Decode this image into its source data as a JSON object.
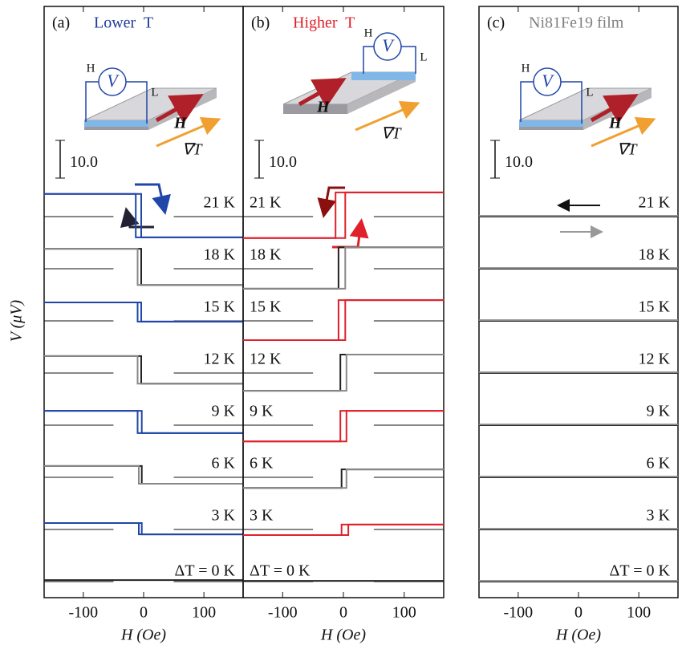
{
  "ylabel": "V (μV)",
  "chart_data": [
    {
      "type": "line",
      "label": "(a)",
      "title": "Lower  T",
      "title_color": "#1f3a9a",
      "xlabel": "H (Oe)",
      "xlim": [
        -165,
        165
      ],
      "xticks": [
        -100,
        0,
        100
      ],
      "reference_lines": true,
      "scale_bar": {
        "value": 10,
        "label": "10.0"
      },
      "inset": {
        "probe_high": "H",
        "voltmeter": "V",
        "probe_low": "L",
        "field": "H",
        "gradient": "∇T"
      },
      "traces": [
        {
          "label": "21 K",
          "series": [
            {
              "color": "#2046a8",
              "x": [
                -165,
                -4,
                -4,
                165
              ],
              "values": [
                6.0,
                6.0,
                -5.5,
                -5.5
              ]
            },
            {
              "color": "#2046a8",
              "x": [
                -165,
                -13,
                -13,
                165
              ],
              "values": [
                6.0,
                6.0,
                -5.5,
                -5.5
              ]
            }
          ]
        },
        {
          "label": "18 K",
          "series": [
            {
              "color": "#222222",
              "x": [
                -165,
                -4,
                -4,
                165
              ],
              "values": [
                5.3,
                5.3,
                -4.3,
                -4.3
              ]
            },
            {
              "color": "#888888",
              "x": [
                -165,
                -10,
                -10,
                165
              ],
              "values": [
                5.3,
                5.3,
                -4.3,
                -4.3
              ]
            }
          ]
        },
        {
          "label": "15 K",
          "series": [
            {
              "color": "#2046a8",
              "x": [
                -165,
                -4,
                -4,
                165
              ],
              "values": [
                4.9,
                4.9,
                -0.2,
                -0.2
              ]
            },
            {
              "color": "#2046a8",
              "x": [
                -165,
                -10,
                -10,
                165
              ],
              "values": [
                4.9,
                4.9,
                -0.2,
                -0.2
              ]
            }
          ]
        },
        {
          "label": "12 K",
          "series": [
            {
              "color": "#222222",
              "x": [
                -165,
                -4,
                -4,
                165
              ],
              "values": [
                4.5,
                4.5,
                -2.8,
                -2.8
              ]
            },
            {
              "color": "#888888",
              "x": [
                -165,
                -10,
                -10,
                165
              ],
              "values": [
                4.5,
                4.5,
                -2.8,
                -2.8
              ]
            }
          ]
        },
        {
          "label": "9 K",
          "series": [
            {
              "color": "#2046a8",
              "x": [
                -165,
                -3,
                -3,
                165
              ],
              "values": [
                3.8,
                3.8,
                -2.1,
                -2.1
              ]
            },
            {
              "color": "#2046a8",
              "x": [
                -165,
                -10,
                -10,
                165
              ],
              "values": [
                3.8,
                3.8,
                -2.1,
                -2.1
              ]
            }
          ]
        },
        {
          "label": "6 K",
          "series": [
            {
              "color": "#222222",
              "x": [
                -165,
                -3,
                -3,
                165
              ],
              "values": [
                3.0,
                3.0,
                -1.7,
                -1.7
              ]
            },
            {
              "color": "#888888",
              "x": [
                -165,
                -8,
                -8,
                165
              ],
              "values": [
                3.0,
                3.0,
                -1.7,
                -1.7
              ]
            }
          ]
        },
        {
          "label": "3 K",
          "series": [
            {
              "color": "#2046a8",
              "x": [
                -165,
                -3,
                -3,
                165
              ],
              "values": [
                1.7,
                1.7,
                -1.3,
                -1.3
              ]
            },
            {
              "color": "#2046a8",
              "x": [
                -165,
                -8,
                -8,
                165
              ],
              "values": [
                1.7,
                1.7,
                -1.3,
                -1.3
              ]
            }
          ]
        },
        {
          "label": "ΔT = 0 K",
          "series": [
            {
              "color": "#222222",
              "x": [
                -165,
                165
              ],
              "values": [
                0.4,
                0.4
              ]
            }
          ]
        }
      ]
    },
    {
      "type": "line",
      "label": "(b)",
      "title": "Higher  T",
      "title_color": "#e0202a",
      "xlabel": "H (Oe)",
      "xlim": [
        -165,
        165
      ],
      "xticks": [
        -100,
        0,
        100
      ],
      "reference_lines": true,
      "scale_bar": {
        "value": 10,
        "label": "10.0"
      },
      "inset": {
        "probe_high": "H",
        "voltmeter": "V",
        "probe_low": "L",
        "field": "H",
        "gradient": "∇T"
      },
      "traces": [
        {
          "label": "21 K",
          "series": [
            {
              "color": "#e0202a",
              "x": [
                -165,
                -13,
                -13,
                165
              ],
              "values": [
                -5.7,
                -5.7,
                6.4,
                6.4
              ]
            },
            {
              "color": "#e0202a",
              "x": [
                -165,
                3,
                3,
                165
              ],
              "values": [
                -5.7,
                -5.7,
                6.4,
                6.4
              ]
            }
          ]
        },
        {
          "label": "18 K",
          "series": [
            {
              "color": "#222222",
              "x": [
                -165,
                -8,
                -8,
                165
              ],
              "values": [
                -5.3,
                -5.3,
                5.7,
                5.7
              ]
            },
            {
              "color": "#888888",
              "x": [
                -165,
                3,
                3,
                165
              ],
              "values": [
                -5.3,
                -5.3,
                5.7,
                5.7
              ]
            }
          ]
        },
        {
          "label": "15 K",
          "series": [
            {
              "color": "#e0202a",
              "x": [
                -165,
                -8,
                -8,
                165
              ],
              "values": [
                -5.1,
                -5.1,
                5.5,
                5.5
              ]
            },
            {
              "color": "#e0202a",
              "x": [
                -165,
                3,
                3,
                165
              ],
              "values": [
                -5.1,
                -5.1,
                5.5,
                5.5
              ]
            }
          ]
        },
        {
          "label": "12 K",
          "series": [
            {
              "color": "#222222",
              "x": [
                -165,
                -5,
                -5,
                165
              ],
              "values": [
                -4.7,
                -4.7,
                4.9,
                4.9
              ]
            },
            {
              "color": "#888888",
              "x": [
                -165,
                5,
                5,
                165
              ],
              "values": [
                -4.7,
                -4.7,
                4.9,
                4.9
              ]
            }
          ]
        },
        {
          "label": "9 K",
          "series": [
            {
              "color": "#e0202a",
              "x": [
                -165,
                -5,
                -5,
                165
              ],
              "values": [
                -4.3,
                -4.3,
                3.8,
                3.8
              ]
            },
            {
              "color": "#e0202a",
              "x": [
                -165,
                5,
                5,
                165
              ],
              "values": [
                -4.3,
                -4.3,
                3.8,
                3.8
              ]
            }
          ]
        },
        {
          "label": "6 K",
          "series": [
            {
              "color": "#222222",
              "x": [
                -165,
                -3,
                -3,
                165
              ],
              "values": [
                -2.8,
                -2.8,
                2.1,
                2.1
              ]
            },
            {
              "color": "#888888",
              "x": [
                -165,
                5,
                5,
                165
              ],
              "values": [
                -2.8,
                -2.8,
                2.1,
                2.1
              ]
            }
          ]
        },
        {
          "label": "3 K",
          "series": [
            {
              "color": "#e0202a",
              "x": [
                -165,
                -3,
                -3,
                165
              ],
              "values": [
                -1.5,
                -1.5,
                1.3,
                1.3
              ]
            },
            {
              "color": "#e0202a",
              "x": [
                -165,
                8,
                8,
                165
              ],
              "values": [
                -1.5,
                -1.5,
                1.3,
                1.3
              ]
            }
          ]
        },
        {
          "label": "ΔT = 0 K",
          "series": [
            {
              "color": "#222222",
              "x": [
                -165,
                165
              ],
              "values": [
                0.2,
                0.2
              ]
            }
          ]
        }
      ]
    },
    {
      "type": "line",
      "label": "(c)",
      "title": "Ni81Fe19 film",
      "title_color": "#808080",
      "xlabel": "H (Oe)",
      "xlim": [
        -165,
        165
      ],
      "xticks": [
        -100,
        0,
        100
      ],
      "reference_lines": false,
      "scale_bar": {
        "value": 10,
        "label": "10.0"
      },
      "inset": {
        "probe_high": "H",
        "voltmeter": "V",
        "probe_low": "L",
        "field": "H",
        "gradient": "∇T"
      },
      "traces": [
        {
          "label": "21 K",
          "series": [
            {
              "color": "#222222",
              "x": [
                -165,
                165
              ],
              "values": [
                0,
                0
              ]
            },
            {
              "color": "#888888",
              "x": [
                -165,
                165
              ],
              "values": [
                0.2,
                0.2
              ]
            }
          ]
        },
        {
          "label": "18 K",
          "series": [
            {
              "color": "#222222",
              "x": [
                -165,
                165
              ],
              "values": [
                0,
                0
              ]
            },
            {
              "color": "#888888",
              "x": [
                -165,
                165
              ],
              "values": [
                0.2,
                0.2
              ]
            }
          ]
        },
        {
          "label": "15 K",
          "series": [
            {
              "color": "#222222",
              "x": [
                -165,
                165
              ],
              "values": [
                0,
                0
              ]
            },
            {
              "color": "#888888",
              "x": [
                -165,
                165
              ],
              "values": [
                0.2,
                0.2
              ]
            }
          ]
        },
        {
          "label": "12 K",
          "series": [
            {
              "color": "#222222",
              "x": [
                -165,
                165
              ],
              "values": [
                0,
                0
              ]
            },
            {
              "color": "#888888",
              "x": [
                -165,
                165
              ],
              "values": [
                0.2,
                0.2
              ]
            }
          ]
        },
        {
          "label": "9 K",
          "series": [
            {
              "color": "#222222",
              "x": [
                -165,
                165
              ],
              "values": [
                0,
                0
              ]
            },
            {
              "color": "#888888",
              "x": [
                -165,
                165
              ],
              "values": [
                0.2,
                0.2
              ]
            }
          ]
        },
        {
          "label": "6 K",
          "series": [
            {
              "color": "#222222",
              "x": [
                -165,
                165
              ],
              "values": [
                0,
                0
              ]
            },
            {
              "color": "#888888",
              "x": [
                -165,
                165
              ],
              "values": [
                0.2,
                0.2
              ]
            }
          ]
        },
        {
          "label": "3 K",
          "series": [
            {
              "color": "#222222",
              "x": [
                -165,
                165
              ],
              "values": [
                0,
                0
              ]
            },
            {
              "color": "#888888",
              "x": [
                -165,
                165
              ],
              "values": [
                0.2,
                0.2
              ]
            }
          ]
        },
        {
          "label": "ΔT = 0 K",
          "series": [
            {
              "color": "#222222",
              "x": [
                -165,
                165
              ],
              "values": [
                0,
                0
              ]
            },
            {
              "color": "#888888",
              "x": [
                -165,
                165
              ],
              "values": [
                0.2,
                0.2
              ]
            }
          ]
        }
      ]
    }
  ]
}
